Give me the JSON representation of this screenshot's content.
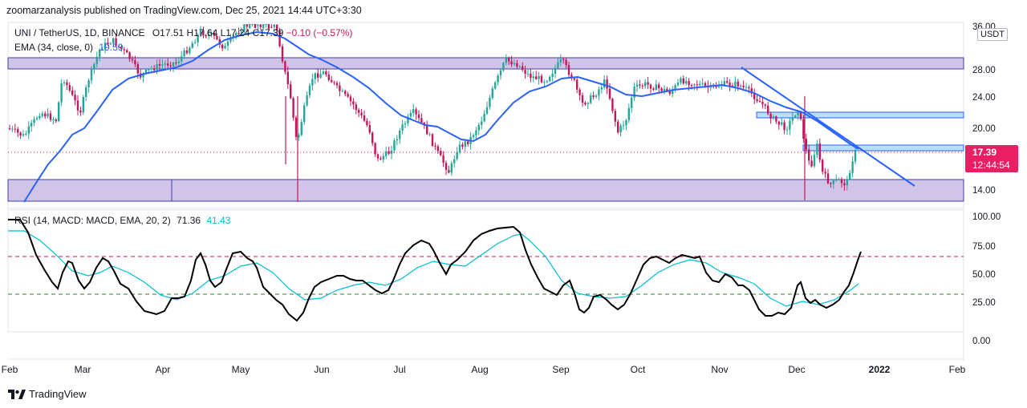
{
  "publisher": "zoomarzanalysis published on TradingView.com, Dec 25, 2021 14:44 UTC+3:30",
  "legend": {
    "symbol": "UNI / TetherUS, 1D, BINANCE",
    "ohlc_text": "O17.51  H17.64  L17.24  C17.39",
    "change_text": "−0.10 (−0.57%)",
    "ema_label": "EMA (34, close, 0)",
    "ema_value": "19.59"
  },
  "rsi_legend": {
    "label": "RSI (14, MACD: MACD, EMA, 20, 2)",
    "rsi_value": "71.36",
    "signal_value": "41.43"
  },
  "price_axis": {
    "currency": "USDT",
    "ticks": [
      "36.00",
      "28.00",
      "24.00",
      "20.00",
      "14.00"
    ],
    "current_price": "17.39",
    "countdown": "12:44:54"
  },
  "rsi_axis": {
    "ticks": [
      "100.00",
      "75.00",
      "50.00",
      "25.00",
      "0.00"
    ]
  },
  "time_axis": {
    "labels": [
      "Feb",
      "Mar",
      "Apr",
      "May",
      "Jun",
      "Jul",
      "Aug",
      "Sep",
      "Oct",
      "Nov",
      "Dec",
      "2022",
      "Feb"
    ]
  },
  "footer": {
    "brand": "TradingView"
  },
  "colors": {
    "zone_fill": "#d1c4e9",
    "zone_border": "#3f3fa0",
    "resistance_fill": "#bbdefb",
    "ema_line": "#2962ff",
    "trendline": "#2962ff",
    "candle_up": "#26a69a",
    "candle_down": "#c2185b",
    "rsi_line": "#000000",
    "rsi_signal": "#00bcd4",
    "overbought_line": "#c2185b",
    "oversold_line": "#2e7d32",
    "price_tag": "#e91e63"
  }
}
